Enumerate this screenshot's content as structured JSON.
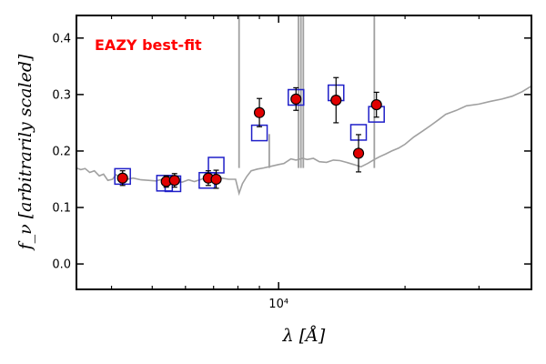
{
  "chart_data": {
    "type": "scatter",
    "annotation": "EAZY best-fit",
    "xlabel": "λ [Å]",
    "ylabel": "f_ν [arbitrarily scaled]",
    "x_scale": "log",
    "xlim": [
      3300,
      40000
    ],
    "ylim": [
      -0.045,
      0.44
    ],
    "y_ticks": [
      0.0,
      0.1,
      0.2,
      0.3,
      0.4
    ],
    "y_tick_labels": [
      "0.0",
      "0.1",
      "0.2",
      "0.3",
      "0.4"
    ],
    "x_major_ticks": [
      10000
    ],
    "x_tick_labels": [
      "10⁴"
    ],
    "x_minor_ticks": [
      4000,
      5000,
      6000,
      7000,
      8000,
      9000,
      20000,
      30000
    ],
    "grid": false,
    "colors": {
      "model_line": "#a0a0a0",
      "template_box": "#1f1fc8",
      "observed_fill": "#e00000",
      "annotation": "#ff0000"
    },
    "series": [
      {
        "kind": "line",
        "points": [
          [
            3300,
            0.17
          ],
          [
            3380,
            0.167
          ],
          [
            3460,
            0.169
          ],
          [
            3550,
            0.162
          ],
          [
            3640,
            0.165
          ],
          [
            3740,
            0.156
          ],
          [
            3830,
            0.159
          ],
          [
            3920,
            0.148
          ],
          [
            4020,
            0.15
          ],
          [
            4100,
            0.158
          ],
          [
            4200,
            0.153
          ],
          [
            4350,
            0.15
          ],
          [
            4500,
            0.152
          ],
          [
            4700,
            0.149
          ],
          [
            4900,
            0.148
          ],
          [
            5100,
            0.147
          ],
          [
            5300,
            0.15
          ],
          [
            5500,
            0.146
          ],
          [
            5700,
            0.145
          ],
          [
            5900,
            0.145
          ],
          [
            6100,
            0.149
          ],
          [
            6300,
            0.146
          ],
          [
            6550,
            0.15
          ],
          [
            6800,
            0.155
          ],
          [
            7000,
            0.15
          ],
          [
            7300,
            0.152
          ],
          [
            7600,
            0.15
          ],
          [
            7900,
            0.15
          ],
          [
            8050,
            0.125
          ],
          [
            8200,
            0.142
          ],
          [
            8400,
            0.155
          ],
          [
            8600,
            0.165
          ],
          [
            8900,
            0.168
          ],
          [
            9200,
            0.17
          ],
          [
            9600,
            0.173
          ],
          [
            10000,
            0.176
          ],
          [
            10300,
            0.178
          ],
          [
            10700,
            0.186
          ],
          [
            11000,
            0.184
          ],
          [
            11400,
            0.187
          ],
          [
            11700,
            0.185
          ],
          [
            12100,
            0.187
          ],
          [
            12500,
            0.181
          ],
          [
            13000,
            0.18
          ],
          [
            13500,
            0.184
          ],
          [
            14000,
            0.183
          ],
          [
            14500,
            0.18
          ],
          [
            15100,
            0.176
          ],
          [
            15700,
            0.172
          ],
          [
            16300,
            0.178
          ],
          [
            16900,
            0.185
          ],
          [
            17400,
            0.19
          ],
          [
            18000,
            0.195
          ],
          [
            18600,
            0.2
          ],
          [
            19300,
            0.205
          ],
          [
            20000,
            0.212
          ],
          [
            21000,
            0.225
          ],
          [
            22000,
            0.235
          ],
          [
            23000,
            0.245
          ],
          [
            24000,
            0.255
          ],
          [
            25000,
            0.265
          ],
          [
            26500,
            0.272
          ],
          [
            28000,
            0.28
          ],
          [
            30000,
            0.283
          ],
          [
            32000,
            0.288
          ],
          [
            34000,
            0.292
          ],
          [
            36000,
            0.297
          ],
          [
            38000,
            0.305
          ],
          [
            40000,
            0.315
          ]
        ]
      },
      {
        "kind": "emission_lines",
        "x": [
          8050,
          9500,
          11150,
          11300,
          11450,
          16900
        ],
        "ytop": [
          0.44,
          0.23,
          0.44,
          0.44,
          0.44,
          0.44
        ]
      },
      {
        "kind": "template_boxes",
        "points": [
          [
            4250,
            0.155
          ],
          [
            5350,
            0.143
          ],
          [
            5600,
            0.142
          ],
          [
            6750,
            0.148
          ],
          [
            7100,
            0.175
          ],
          [
            9000,
            0.232
          ],
          [
            11000,
            0.295
          ],
          [
            13700,
            0.303
          ],
          [
            15500,
            0.233
          ],
          [
            17100,
            0.265
          ]
        ]
      },
      {
        "kind": "observed",
        "points": [
          {
            "x": 4250,
            "y": 0.152,
            "err": 0.013
          },
          {
            "x": 5400,
            "y": 0.146,
            "err": 0.01
          },
          {
            "x": 5650,
            "y": 0.148,
            "err": 0.012
          },
          {
            "x": 6800,
            "y": 0.152,
            "err": 0.013
          },
          {
            "x": 7100,
            "y": 0.15,
            "err": 0.016
          },
          {
            "x": 9000,
            "y": 0.268,
            "err": 0.025
          },
          {
            "x": 11000,
            "y": 0.292,
            "err": 0.02
          },
          {
            "x": 13700,
            "y": 0.29,
            "err": 0.04
          },
          {
            "x": 15500,
            "y": 0.196,
            "err": 0.033
          },
          {
            "x": 17100,
            "y": 0.282,
            "err": 0.022
          }
        ]
      }
    ]
  }
}
